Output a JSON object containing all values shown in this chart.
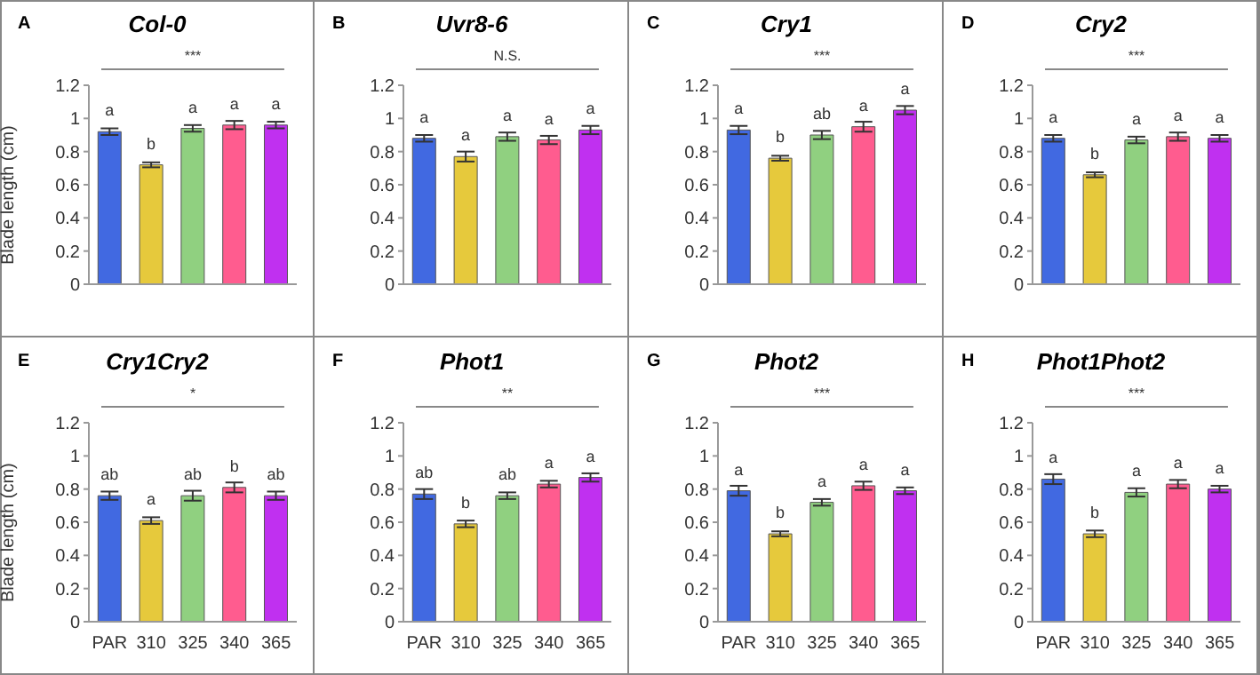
{
  "chart_data": [
    {
      "type": "bar",
      "title": "Col-0",
      "ylabel": "Blade length (cm)",
      "categories": [
        null,
        null,
        null,
        null,
        null
      ],
      "values": [
        0.92,
        0.72,
        0.94,
        0.96,
        0.96
      ],
      "errors": [
        0.02,
        0.015,
        0.02,
        0.025,
        0.02
      ],
      "colors": [
        "#4169e1",
        "#e6c93c",
        "#90d080",
        "#ff5c8f",
        "#c030f0"
      ],
      "value_labels": [
        "a",
        "b",
        "a",
        "a",
        "a"
      ],
      "ylim": [
        0,
        1.2
      ],
      "yticks": [
        0,
        0.2,
        0.4,
        0.6,
        0.8,
        1,
        1.2
      ],
      "tick_labels": "y",
      "annotations": [
        "A",
        "***"
      ]
    },
    {
      "type": "bar",
      "title": "Uvr8-6",
      "categories": [
        null,
        null,
        null,
        null,
        null
      ],
      "values": [
        0.88,
        0.77,
        0.89,
        0.87,
        0.93
      ],
      "errors": [
        0.02,
        0.03,
        0.025,
        0.025,
        0.025
      ],
      "colors": [
        "#4169e1",
        "#e6c93c",
        "#90d080",
        "#ff5c8f",
        "#c030f0"
      ],
      "value_labels": [
        "a",
        "a",
        "a",
        "a",
        "a"
      ],
      "ylim": [
        0,
        1.2
      ],
      "yticks": [
        0,
        0.2,
        0.4,
        0.6,
        0.8,
        1,
        1.2
      ],
      "tick_labels": "y",
      "annotations": [
        "B",
        "N.S."
      ]
    },
    {
      "type": "bar",
      "title": "Cry1",
      "categories": [
        null,
        null,
        null,
        null,
        null
      ],
      "values": [
        0.93,
        0.76,
        0.9,
        0.95,
        1.05
      ],
      "errors": [
        0.025,
        0.015,
        0.025,
        0.03,
        0.025
      ],
      "colors": [
        "#4169e1",
        "#e6c93c",
        "#90d080",
        "#ff5c8f",
        "#c030f0"
      ],
      "value_labels": [
        "a",
        "b",
        "ab",
        "a",
        "a"
      ],
      "ylim": [
        0,
        1.2
      ],
      "yticks": [
        0,
        0.2,
        0.4,
        0.6,
        0.8,
        1,
        1.2
      ],
      "tick_labels": "y",
      "annotations": [
        "C",
        "***"
      ]
    },
    {
      "type": "bar",
      "title": "Cry2",
      "categories": [
        null,
        null,
        null,
        null,
        null
      ],
      "values": [
        0.88,
        0.66,
        0.87,
        0.89,
        0.88
      ],
      "errors": [
        0.02,
        0.015,
        0.02,
        0.025,
        0.02
      ],
      "colors": [
        "#4169e1",
        "#e6c93c",
        "#90d080",
        "#ff5c8f",
        "#c030f0"
      ],
      "value_labels": [
        "a",
        "b",
        "a",
        "a",
        "a"
      ],
      "ylim": [
        0,
        1.2
      ],
      "yticks": [
        0,
        0.2,
        0.4,
        0.6,
        0.8,
        1,
        1.2
      ],
      "tick_labels": "y",
      "annotations": [
        "D",
        "***"
      ]
    },
    {
      "type": "bar",
      "title": "Cry1Cry2",
      "ylabel": "Blade length (cm)",
      "categories": [
        "PAR",
        "310",
        "325",
        "340",
        "365"
      ],
      "values": [
        0.76,
        0.61,
        0.76,
        0.81,
        0.76
      ],
      "errors": [
        0.025,
        0.02,
        0.03,
        0.03,
        0.025
      ],
      "colors": [
        "#4169e1",
        "#e6c93c",
        "#90d080",
        "#ff5c8f",
        "#c030f0"
      ],
      "value_labels": [
        "ab",
        "a",
        "ab",
        "b",
        "ab"
      ],
      "ylim": [
        0,
        1.2
      ],
      "yticks": [
        0,
        0.2,
        0.4,
        0.6,
        0.8,
        1,
        1.2
      ],
      "annotations": [
        "E",
        "*"
      ]
    },
    {
      "type": "bar",
      "title": "Phot1",
      "categories": [
        "PAR",
        "310",
        "325",
        "340",
        "365"
      ],
      "values": [
        0.77,
        0.59,
        0.76,
        0.83,
        0.87
      ],
      "errors": [
        0.03,
        0.02,
        0.02,
        0.02,
        0.025
      ],
      "colors": [
        "#4169e1",
        "#e6c93c",
        "#90d080",
        "#ff5c8f",
        "#c030f0"
      ],
      "value_labels": [
        "ab",
        "b",
        "ab",
        "a",
        "a"
      ],
      "ylim": [
        0,
        1.2
      ],
      "yticks": [
        0,
        0.2,
        0.4,
        0.6,
        0.8,
        1,
        1.2
      ],
      "annotations": [
        "F",
        "**"
      ]
    },
    {
      "type": "bar",
      "title": "Phot2",
      "categories": [
        "PAR",
        "310",
        "325",
        "340",
        "365"
      ],
      "values": [
        0.79,
        0.53,
        0.72,
        0.82,
        0.79
      ],
      "errors": [
        0.03,
        0.015,
        0.02,
        0.025,
        0.02
      ],
      "colors": [
        "#4169e1",
        "#e6c93c",
        "#90d080",
        "#ff5c8f",
        "#c030f0"
      ],
      "value_labels": [
        "a",
        "b",
        "a",
        "a",
        "a"
      ],
      "ylim": [
        0,
        1.2
      ],
      "yticks": [
        0,
        0.2,
        0.4,
        0.6,
        0.8,
        1,
        1.2
      ],
      "annotations": [
        "G",
        "***"
      ]
    },
    {
      "type": "bar",
      "title": "Phot1Phot2",
      "categories": [
        "PAR",
        "310",
        "325",
        "340",
        "365"
      ],
      "values": [
        0.86,
        0.53,
        0.78,
        0.83,
        0.8
      ],
      "errors": [
        0.03,
        0.02,
        0.025,
        0.025,
        0.02
      ],
      "colors": [
        "#4169e1",
        "#e6c93c",
        "#90d080",
        "#ff5c8f",
        "#c030f0"
      ],
      "value_labels": [
        "a",
        "b",
        "a",
        "a",
        "a"
      ],
      "ylim": [
        0,
        1.2
      ],
      "yticks": [
        0,
        0.2,
        0.4,
        0.6,
        0.8,
        1,
        1.2
      ],
      "annotations": [
        "H",
        "***"
      ]
    }
  ]
}
